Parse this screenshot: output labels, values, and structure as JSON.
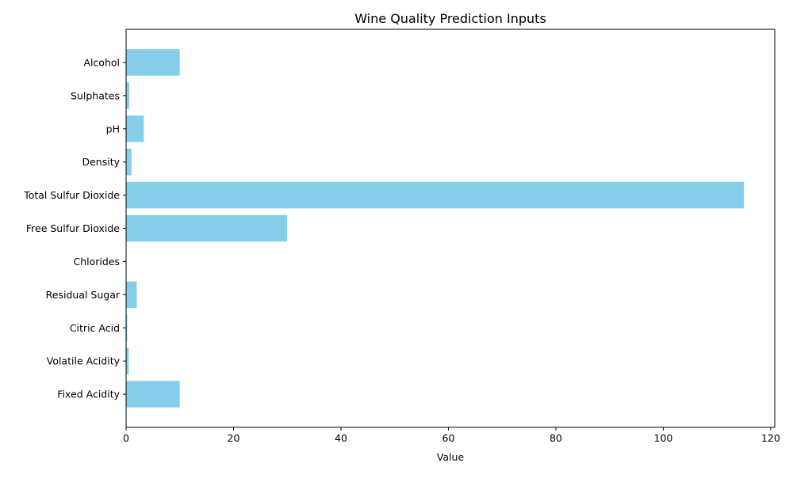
{
  "chart_data": {
    "type": "bar",
    "orientation": "horizontal",
    "title": "Wine Quality Prediction Inputs",
    "xlabel": "Value",
    "ylabel": "",
    "categories": [
      "Fixed Acidity",
      "Volatile Acidity",
      "Citric Acid",
      "Residual Sugar",
      "Chlorides",
      "Free Sulfur Dioxide",
      "Total Sulfur Dioxide",
      "Density",
      "pH",
      "Sulphates",
      "Alcohol"
    ],
    "values": [
      10,
      0.5,
      0.2,
      2,
      0.05,
      30,
      115,
      1,
      3.3,
      0.6,
      10
    ],
    "xlim": [
      0,
      120.75
    ],
    "xticks": [
      0,
      20,
      40,
      60,
      80,
      100,
      120
    ],
    "grid": false,
    "colors": {
      "bar": "#87ceeb",
      "axis": "#000000",
      "background": "#ffffff"
    }
  }
}
